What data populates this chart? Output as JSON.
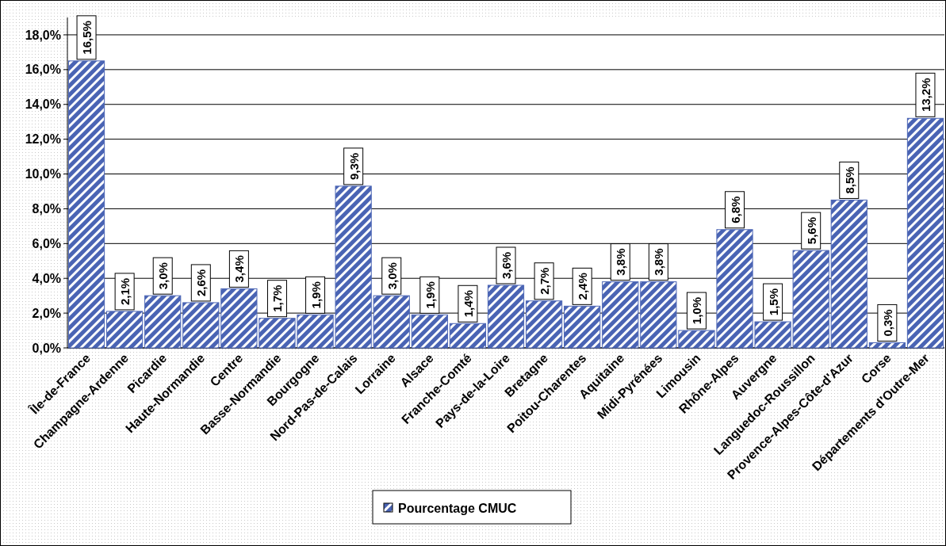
{
  "chart_data": {
    "type": "bar",
    "categories": [
      "Île-de-France",
      "Champagne-Ardenne",
      "Picardie",
      "Haute-Normandie",
      "Centre",
      "Basse-Normandie",
      "Bourgogne",
      "Nord-Pas-de-Calais",
      "Lorraine",
      "Alsace",
      "Franche-Comté",
      "Pays-de-la-Loire",
      "Bretagne",
      "Poitou-Charentes",
      "Aquitaine",
      "Midi-Pyrénées",
      "Limousin",
      "Rhône-Alpes",
      "Auvergne",
      "Languedoc-Roussillon",
      "Provence-Alpes-Côte-d'Azur",
      "Corse",
      "Départements d'Outre-Mer"
    ],
    "series": [
      {
        "name": "Pourcentage CMUC",
        "color": "#4a64b4",
        "values": [
          16.5,
          2.1,
          3.0,
          2.6,
          3.4,
          1.7,
          1.9,
          9.3,
          3.0,
          1.9,
          1.4,
          3.6,
          2.7,
          2.4,
          3.8,
          3.8,
          1.0,
          6.8,
          1.5,
          5.6,
          8.5,
          0.3,
          13.2
        ],
        "value_labels": [
          "16,5%",
          "2,1%",
          "3,0%",
          "2,6%",
          "3,4%",
          "1,7%",
          "1,9%",
          "9,3%",
          "3,0%",
          "1,9%",
          "1,4%",
          "3,6%",
          "2,7%",
          "2,4%",
          "3,8%",
          "3,8%",
          "1,0%",
          "6,8%",
          "1,5%",
          "5,6%",
          "8,5%",
          "0,3%",
          "13,2%"
        ]
      }
    ],
    "ylim": [
      0,
      19
    ],
    "yticks": [
      {
        "value": 0,
        "label": "0,0%"
      },
      {
        "value": 2,
        "label": "2,0%"
      },
      {
        "value": 4,
        "label": "4,0%"
      },
      {
        "value": 6,
        "label": "6,0%"
      },
      {
        "value": 8,
        "label": "8,0%"
      },
      {
        "value": 10,
        "label": "10,0%"
      },
      {
        "value": 12,
        "label": "12,0%"
      },
      {
        "value": 14,
        "label": "14,0%"
      },
      {
        "value": 16,
        "label": "16,0%"
      },
      {
        "value": 18,
        "label": "18,0%"
      }
    ],
    "grid": "y",
    "legend": "bottom"
  }
}
